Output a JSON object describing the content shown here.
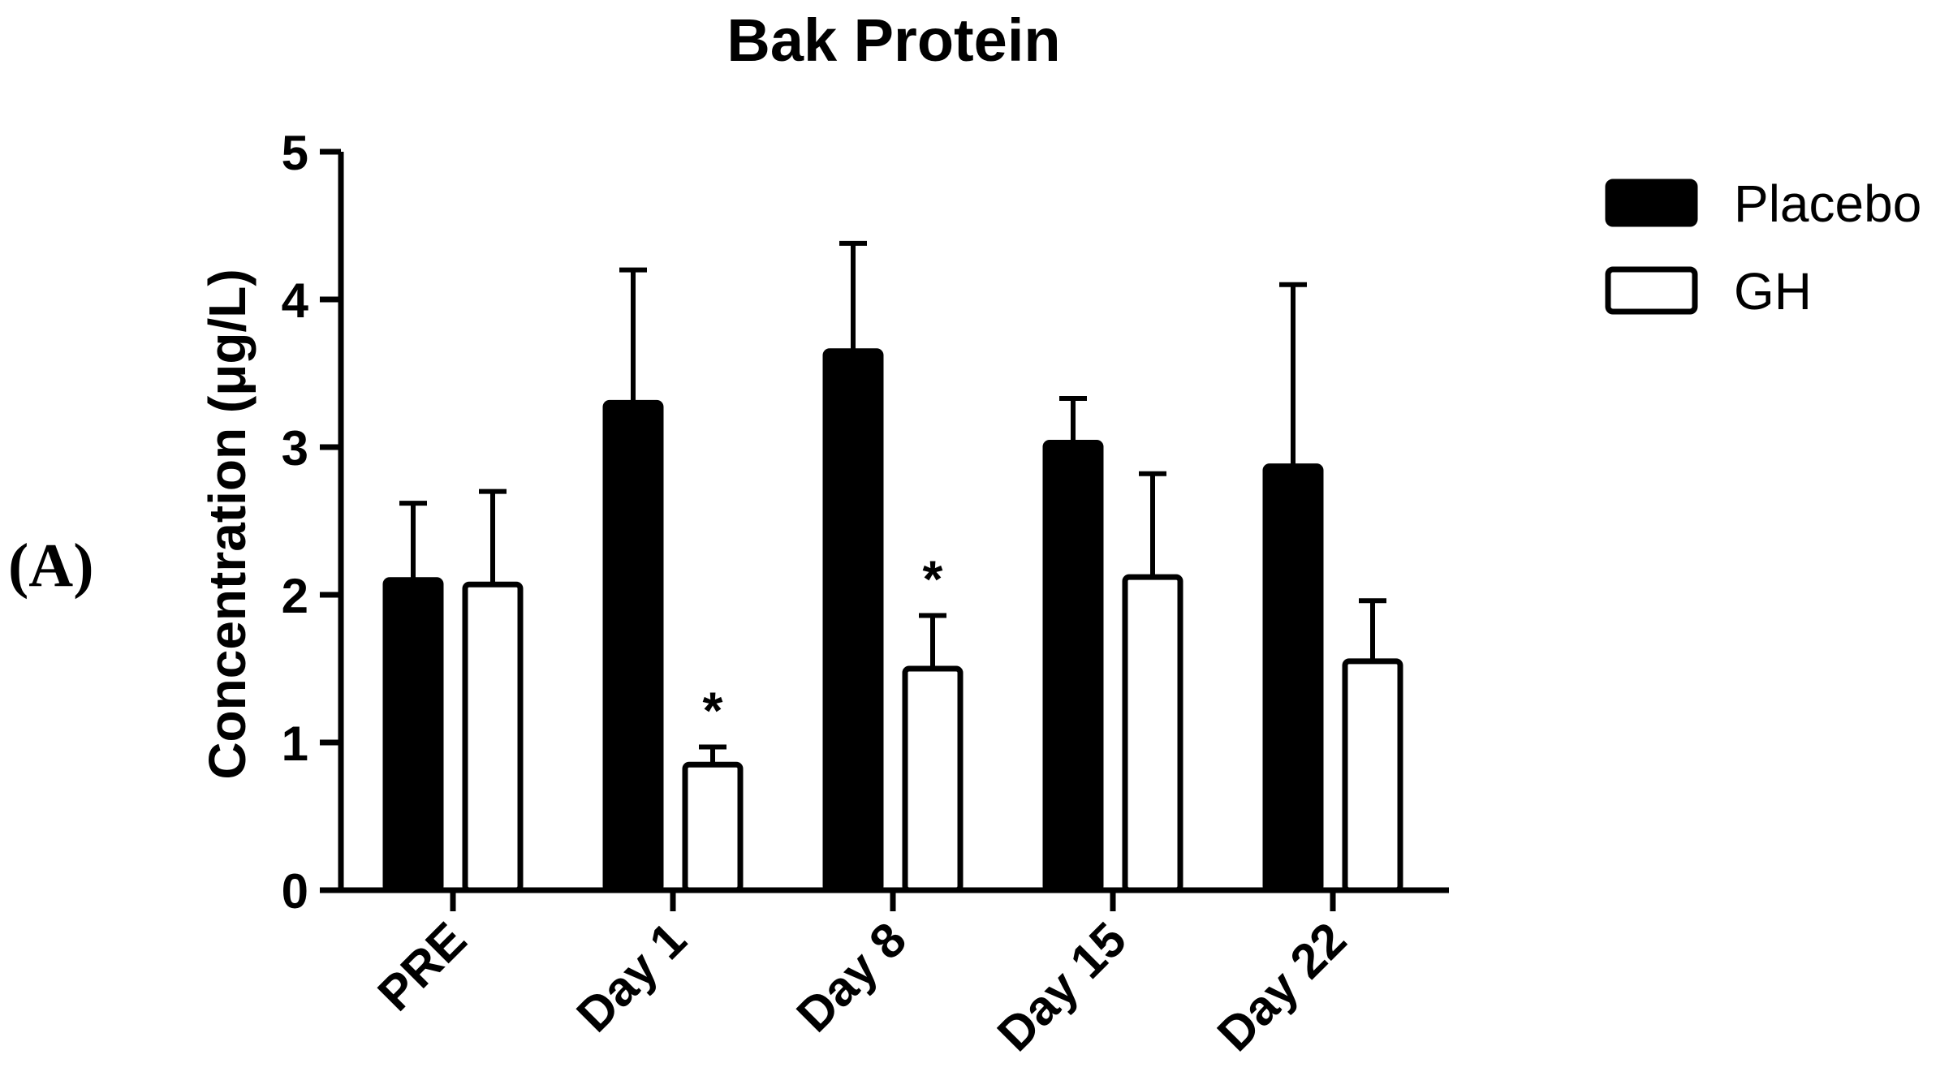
{
  "panel_label": "(A)",
  "chart_data": {
    "type": "bar",
    "title": "Bak Protein",
    "xlabel": "",
    "ylabel": "Concentration (μg/L)",
    "ylim": [
      0,
      5
    ],
    "yticks": [
      0,
      1,
      2,
      3,
      4,
      5
    ],
    "categories": [
      "PRE",
      "Day 1",
      "Day 8",
      "Day 15",
      "Day 22"
    ],
    "series": [
      {
        "name": "Placebo",
        "fill": "#000000",
        "values": [
          2.1,
          3.3,
          3.65,
          3.03,
          2.87
        ],
        "error_upper": [
          2.62,
          4.2,
          4.38,
          3.33,
          4.1
        ]
      },
      {
        "name": "GH",
        "fill": "#ffffff",
        "values": [
          2.07,
          0.85,
          1.5,
          2.12,
          1.55
        ],
        "error_upper": [
          2.7,
          0.97,
          1.86,
          2.82,
          1.96
        ]
      }
    ],
    "annotations": [
      {
        "category": "Day 1",
        "series": "GH",
        "text": "*"
      },
      {
        "category": "Day 8",
        "series": "GH",
        "text": "*"
      }
    ],
    "legend": "top-right",
    "grid": false
  }
}
